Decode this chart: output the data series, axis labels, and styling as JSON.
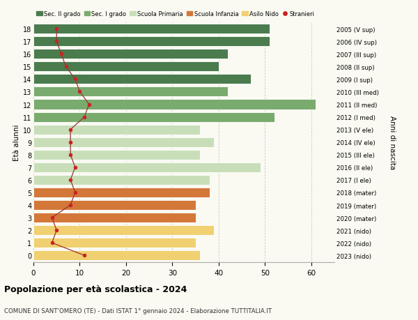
{
  "ages": [
    18,
    17,
    16,
    15,
    14,
    13,
    12,
    11,
    10,
    9,
    8,
    7,
    6,
    5,
    4,
    3,
    2,
    1,
    0
  ],
  "anni_nascita": [
    "2005 (V sup)",
    "2006 (IV sup)",
    "2007 (III sup)",
    "2008 (II sup)",
    "2009 (I sup)",
    "2010 (III med)",
    "2011 (II med)",
    "2012 (I med)",
    "2013 (V ele)",
    "2014 (IV ele)",
    "2015 (III ele)",
    "2016 (II ele)",
    "2017 (I ele)",
    "2018 (mater)",
    "2019 (mater)",
    "2020 (mater)",
    "2021 (nido)",
    "2022 (nido)",
    "2023 (nido)"
  ],
  "bar_values": [
    51,
    51,
    42,
    40,
    47,
    42,
    61,
    52,
    36,
    39,
    36,
    49,
    38,
    38,
    35,
    35,
    39,
    35,
    36
  ],
  "bar_colors": [
    "#4a7c4e",
    "#4a7c4e",
    "#4a7c4e",
    "#4a7c4e",
    "#4a7c4e",
    "#7aab6e",
    "#7aab6e",
    "#7aab6e",
    "#c8deb8",
    "#c8deb8",
    "#c8deb8",
    "#c8deb8",
    "#c8deb8",
    "#d4783a",
    "#d4783a",
    "#d4783a",
    "#f0d070",
    "#f0d070",
    "#f0d070"
  ],
  "stranieri": [
    5,
    5,
    6,
    7,
    9,
    10,
    12,
    11,
    8,
    8,
    8,
    9,
    8,
    9,
    8,
    4,
    5,
    4,
    11
  ],
  "stranieri_color": "#cc2222",
  "stranieri_line_color": "#993333",
  "xlim": [
    0,
    65
  ],
  "xticks": [
    0,
    10,
    20,
    30,
    40,
    50,
    60
  ],
  "left_ylabel": "Età alunni",
  "right_ylabel": "Anni di nascita",
  "title": "Popolazione per età scolastica - 2024",
  "subtitle": "COMUNE DI SANT'OMERO (TE) - Dati ISTAT 1° gennaio 2024 - Elaborazione TUTTITALIA.IT",
  "legend_items": [
    {
      "label": "Sec. II grado",
      "color": "#4a7c4e",
      "type": "patch"
    },
    {
      "label": "Sec. I grado",
      "color": "#7aab6e",
      "type": "patch"
    },
    {
      "label": "Scuola Primaria",
      "color": "#c8deb8",
      "type": "patch"
    },
    {
      "label": "Scuola Infanzia",
      "color": "#d4783a",
      "type": "patch"
    },
    {
      "label": "Asilo Nido",
      "color": "#f0d070",
      "type": "patch"
    },
    {
      "label": "Stranieri",
      "color": "#cc2222",
      "type": "dot"
    }
  ],
  "bg_color": "#fafaf2",
  "bar_height": 0.78
}
